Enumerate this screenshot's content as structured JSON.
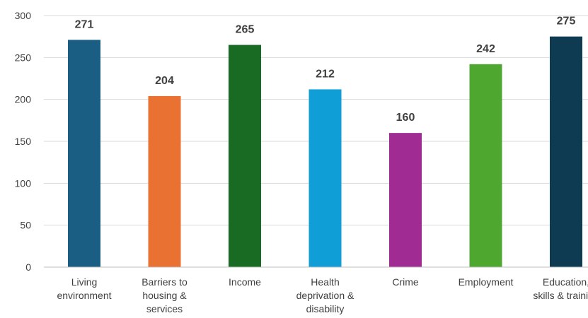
{
  "chart_data": {
    "type": "bar",
    "categories": [
      [
        "Living",
        "environment"
      ],
      [
        "Barriers to",
        "housing &",
        "services"
      ],
      [
        "Income"
      ],
      [
        "Health",
        "deprivation &",
        "disability"
      ],
      [
        "Crime"
      ],
      [
        "Employment"
      ],
      [
        "Education,",
        "skills & training"
      ]
    ],
    "values": [
      271,
      204,
      265,
      212,
      160,
      242,
      275
    ],
    "colors": [
      "#1a5e83",
      "#e97132",
      "#196b24",
      "#0f9ed5",
      "#a02b93",
      "#4ea72e",
      "#0e3a52"
    ],
    "ylim": [
      0,
      300
    ],
    "yticks": [
      0,
      50,
      100,
      150,
      200,
      250,
      300
    ],
    "grid": true,
    "title": "",
    "xlabel": "",
    "ylabel": ""
  }
}
